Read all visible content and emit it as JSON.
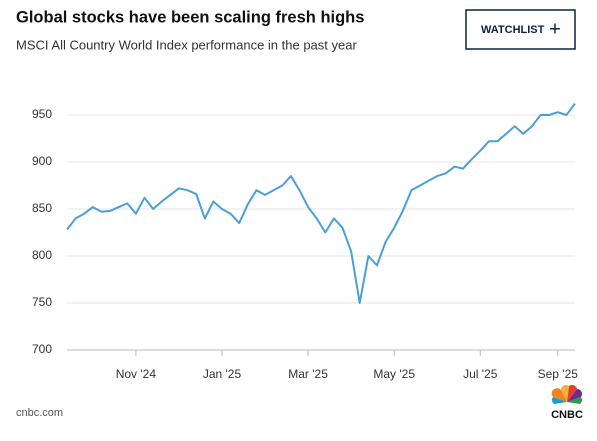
{
  "chart_data": {
    "type": "line",
    "title": "Global stocks have been scaling fresh highs",
    "subtitle": "MSCI All Country World Index performance in the past year",
    "categories": [
      null,
      null,
      null,
      null,
      null,
      null,
      null,
      null,
      "Nov '24",
      null,
      null,
      null,
      null,
      null,
      null,
      null,
      null,
      null,
      "Jan '25",
      null,
      null,
      null,
      null,
      null,
      null,
      null,
      null,
      null,
      "Mar '25",
      null,
      null,
      null,
      null,
      null,
      null,
      null,
      null,
      null,
      "May '25",
      null,
      null,
      null,
      null,
      null,
      null,
      null,
      null,
      null,
      "Jul '25",
      null,
      null,
      null,
      null,
      null,
      null,
      null,
      null,
      "Sep '25",
      null,
      null
    ],
    "series": [
      {
        "name": "MSCI All Country World Index",
        "color": "#4b9fd9",
        "values": [
          828,
          840,
          845,
          852,
          847,
          848,
          852,
          856,
          845,
          862,
          850,
          858,
          865,
          872,
          870,
          866,
          840,
          858,
          850,
          845,
          835,
          855,
          870,
          865,
          870,
          875,
          885,
          870,
          852,
          840,
          825,
          840,
          830,
          805,
          750,
          800,
          790,
          815,
          830,
          848,
          870,
          875,
          880,
          885,
          888,
          895,
          893,
          903,
          912,
          922,
          922,
          930,
          938,
          930,
          938,
          950,
          950,
          953,
          950,
          962
        ]
      }
    ],
    "ylim": [
      700,
      975
    ],
    "yticks": [
      700,
      750,
      800,
      850,
      900,
      950
    ],
    "grid": true
  },
  "button": {
    "label": "WATCHLIST",
    "icon": "+"
  },
  "footer": {
    "source": "cnbc.com",
    "logo": "CNBC"
  }
}
